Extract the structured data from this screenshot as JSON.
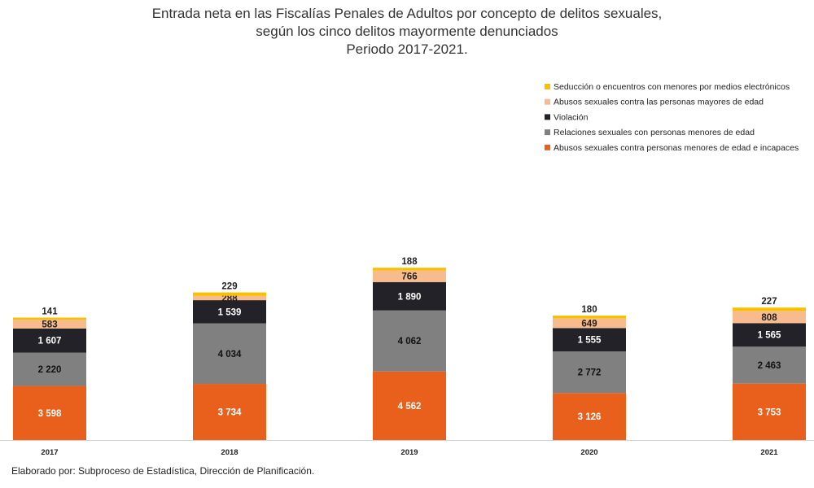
{
  "title_lines": [
    "Entrada neta en las Fiscalías Penales de Adultos por concepto de delitos sexuales,",
    "según los cinco delitos mayormente denunciados",
    "Periodo 2017-2021."
  ],
  "footer": "Elaborado por: Subproceso de Estadística, Dirección de Planificación.",
  "chart_data": {
    "type": "bar",
    "stacked": true,
    "categories": [
      "2017",
      "2018",
      "2019",
      "2020",
      "2021"
    ],
    "series": [
      {
        "name": "Abusos sexuales contra personas menores de edad e incapaces",
        "color": "#e8601c",
        "label_color": "#ffffff",
        "values": [
          3598,
          3734,
          4562,
          3126,
          3753
        ],
        "labels": [
          "3 598",
          "3 734",
          "4 562",
          "3 126",
          "3 753"
        ]
      },
      {
        "name": "Relaciones sexuales con personas menores de edad",
        "color": "#808080",
        "label_color": "#111111",
        "values": [
          2220,
          4034,
          4062,
          2772,
          2463
        ],
        "labels": [
          "2 220",
          "4 034",
          "4 062",
          "2 772",
          "2 463"
        ]
      },
      {
        "name": "Violación",
        "color": "#222228",
        "label_color": "#ffffff",
        "values": [
          1607,
          1539,
          1890,
          1555,
          1565
        ],
        "labels": [
          "1 607",
          "1 539",
          "1 890",
          "1 555",
          "1 565"
        ]
      },
      {
        "name": "Abusos sexuales contra las personas mayores de edad",
        "color": "#f7bb8d",
        "label_color": "#222222",
        "values": [
          583,
          288,
          766,
          649,
          808
        ],
        "labels": [
          "583",
          "288",
          "766",
          "649",
          "808"
        ]
      },
      {
        "name": "Seducción o encuentros con menores por medios electrónicos",
        "color": "#f7c000",
        "label_color": "#222222",
        "values": [
          141,
          229,
          188,
          180,
          227
        ],
        "labels": [
          "141",
          "229",
          "188",
          "180",
          "227"
        ]
      }
    ],
    "legend_position": "top-right",
    "grid": false
  }
}
